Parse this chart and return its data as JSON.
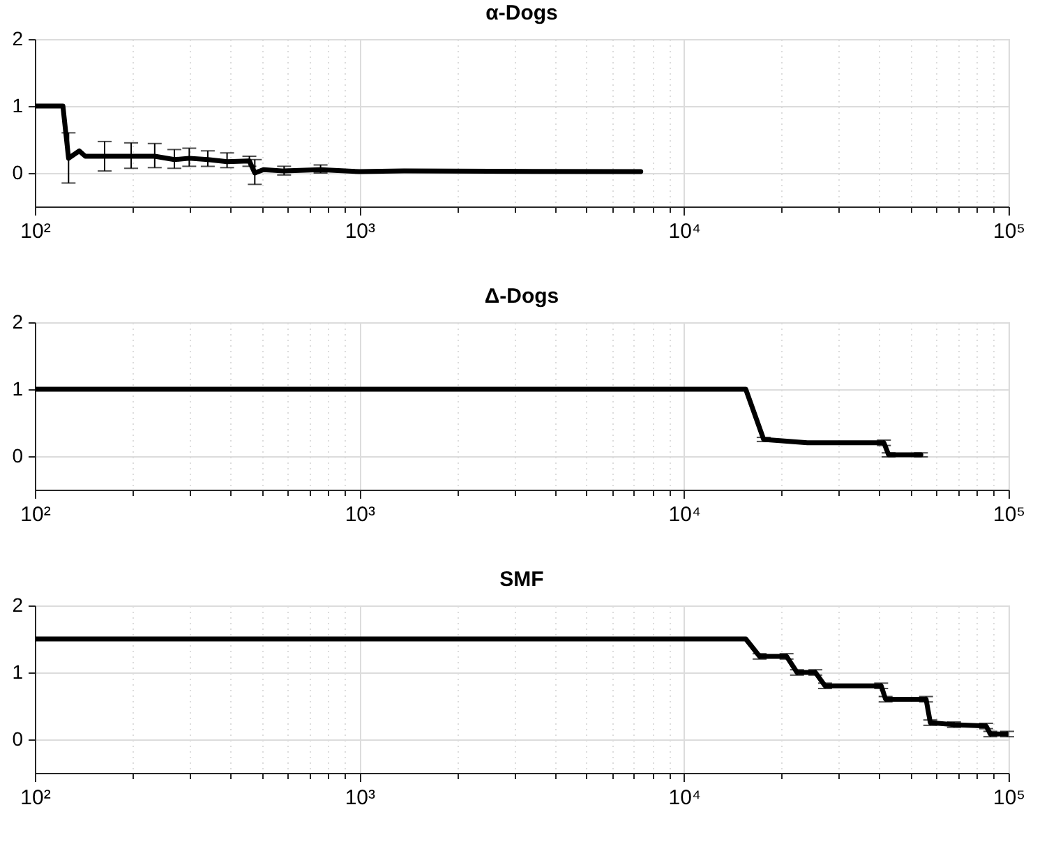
{
  "chart_data": [
    {
      "type": "line",
      "title": "α-Dogs",
      "log": "x",
      "grid": true,
      "marker": "none",
      "line_style": "solid",
      "xlim": [
        100,
        100000
      ],
      "ylim": [
        -0.5,
        2
      ],
      "yticks": [
        0,
        1,
        2
      ],
      "xticks": [
        {
          "value": 100,
          "label": "10²"
        },
        {
          "value": 200,
          "label": null
        },
        {
          "value": 300,
          "label": null
        },
        {
          "value": 400,
          "label": null
        },
        {
          "value": 500,
          "label": null
        },
        {
          "value": 600,
          "label": null
        },
        {
          "value": 700,
          "label": null
        },
        {
          "value": 800,
          "label": null
        },
        {
          "value": 900,
          "label": null
        },
        {
          "value": 1000,
          "label": "10³"
        },
        {
          "value": 2000,
          "label": null
        },
        {
          "value": 3000,
          "label": null
        },
        {
          "value": 4000,
          "label": null
        },
        {
          "value": 5000,
          "label": null
        },
        {
          "value": 6000,
          "label": null
        },
        {
          "value": 7000,
          "label": null
        },
        {
          "value": 8000,
          "label": null
        },
        {
          "value": 9000,
          "label": null
        },
        {
          "value": 10000,
          "label": "10⁴"
        },
        {
          "value": 20000,
          "label": null
        },
        {
          "value": 30000,
          "label": null
        },
        {
          "value": 40000,
          "label": null
        },
        {
          "value": 50000,
          "label": null
        },
        {
          "value": 60000,
          "label": null
        },
        {
          "value": 70000,
          "label": null
        },
        {
          "value": 80000,
          "label": null
        },
        {
          "value": 90000,
          "label": null
        },
        {
          "value": 100000,
          "label": "10⁵"
        }
      ],
      "series": [
        {
          "color": "#000000",
          "x": [
            100,
            122,
            127,
            137,
            143,
            164,
            198,
            234,
            269,
            299,
            341,
            391,
            458,
            476,
            506,
            586,
            759,
            1000,
            1372,
            7360
          ],
          "values": [
            1.0,
            1.0,
            0.22,
            0.33,
            0.25,
            0.25,
            0.25,
            0.25,
            0.2,
            0.22,
            0.2,
            0.17,
            0.18,
            0.0,
            0.05,
            0.03,
            0.05,
            0.02,
            0.03,
            0.02
          ],
          "errors": [
            null,
            null,
            [
              -0.15,
              0.6
            ],
            null,
            null,
            [
              0.03,
              0.47
            ],
            [
              0.07,
              0.45
            ],
            [
              0.08,
              0.44
            ],
            [
              0.07,
              0.35
            ],
            [
              0.1,
              0.37
            ],
            [
              0.1,
              0.33
            ],
            [
              0.08,
              0.3
            ],
            [
              0.1,
              0.25
            ],
            [
              -0.17,
              0.2
            ],
            null,
            [
              -0.03,
              0.1
            ],
            [
              0.0,
              0.12
            ],
            null,
            null,
            null
          ]
        }
      ]
    },
    {
      "type": "line",
      "title": "Δ-Dogs",
      "log": "x",
      "grid": true,
      "marker": "none",
      "line_style": "solid",
      "xlim": [
        100,
        100000
      ],
      "ylim": [
        -0.5,
        2
      ],
      "yticks": [
        0,
        1,
        2
      ],
      "xticks": [
        {
          "value": 100,
          "label": "10²"
        },
        {
          "value": 200,
          "label": null
        },
        {
          "value": 300,
          "label": null
        },
        {
          "value": 400,
          "label": null
        },
        {
          "value": 500,
          "label": null
        },
        {
          "value": 600,
          "label": null
        },
        {
          "value": 700,
          "label": null
        },
        {
          "value": 800,
          "label": null
        },
        {
          "value": 900,
          "label": null
        },
        {
          "value": 1000,
          "label": "10³"
        },
        {
          "value": 2000,
          "label": null
        },
        {
          "value": 3000,
          "label": null
        },
        {
          "value": 4000,
          "label": null
        },
        {
          "value": 5000,
          "label": null
        },
        {
          "value": 6000,
          "label": null
        },
        {
          "value": 7000,
          "label": null
        },
        {
          "value": 8000,
          "label": null
        },
        {
          "value": 9000,
          "label": null
        },
        {
          "value": 10000,
          "label": "10⁴"
        },
        {
          "value": 20000,
          "label": null
        },
        {
          "value": 30000,
          "label": null
        },
        {
          "value": 40000,
          "label": null
        },
        {
          "value": 50000,
          "label": null
        },
        {
          "value": 60000,
          "label": null
        },
        {
          "value": 70000,
          "label": null
        },
        {
          "value": 80000,
          "label": null
        },
        {
          "value": 90000,
          "label": null
        },
        {
          "value": 100000,
          "label": "10⁵"
        }
      ],
      "series": [
        {
          "color": "#000000",
          "x": [
            100,
            15500,
            17600,
            24000,
            41300,
            42700,
            53700
          ],
          "values": [
            1.0,
            1.0,
            0.25,
            0.2,
            0.2,
            0.02,
            0.02
          ],
          "errors": [
            null,
            null,
            [
              0.22,
              0.28
            ],
            null,
            [
              0.16,
              0.24
            ],
            [
              -0.01,
              0.05
            ],
            [
              -0.01,
              0.05
            ]
          ]
        }
      ]
    },
    {
      "type": "line",
      "title": "SMF",
      "log": "x",
      "grid": true,
      "marker": "none",
      "line_style": "solid",
      "xlim": [
        100,
        100000
      ],
      "ylim": [
        -0.5,
        2
      ],
      "yticks": [
        0,
        1,
        2
      ],
      "xticks": [
        {
          "value": 100,
          "label": "10²"
        },
        {
          "value": 200,
          "label": null
        },
        {
          "value": 300,
          "label": null
        },
        {
          "value": 400,
          "label": null
        },
        {
          "value": 500,
          "label": null
        },
        {
          "value": 600,
          "label": null
        },
        {
          "value": 700,
          "label": null
        },
        {
          "value": 800,
          "label": null
        },
        {
          "value": 900,
          "label": null
        },
        {
          "value": 1000,
          "label": "10³"
        },
        {
          "value": 2000,
          "label": null
        },
        {
          "value": 3000,
          "label": null
        },
        {
          "value": 4000,
          "label": null
        },
        {
          "value": 5000,
          "label": null
        },
        {
          "value": 6000,
          "label": null
        },
        {
          "value": 7000,
          "label": null
        },
        {
          "value": 8000,
          "label": null
        },
        {
          "value": 9000,
          "label": null
        },
        {
          "value": 10000,
          "label": "10⁴"
        },
        {
          "value": 20000,
          "label": null
        },
        {
          "value": 30000,
          "label": null
        },
        {
          "value": 40000,
          "label": null
        },
        {
          "value": 50000,
          "label": null
        },
        {
          "value": 60000,
          "label": null
        },
        {
          "value": 70000,
          "label": null
        },
        {
          "value": 80000,
          "label": null
        },
        {
          "value": 90000,
          "label": null
        },
        {
          "value": 100000,
          "label": "10⁵"
        }
      ],
      "series": [
        {
          "color": "#000000",
          "x": [
            100,
            15500,
            17100,
            20700,
            22300,
            25400,
            27200,
            40500,
            41800,
            55700,
            57400,
            67900,
            85300,
            87900,
            99000
          ],
          "values": [
            1.5,
            1.5,
            1.24,
            1.24,
            1.0,
            1.0,
            0.8,
            0.8,
            0.6,
            0.6,
            0.25,
            0.22,
            0.2,
            0.08,
            0.08
          ],
          "errors": [
            null,
            null,
            [
              1.2,
              1.28
            ],
            [
              1.2,
              1.28
            ],
            [
              0.96,
              1.04
            ],
            [
              0.96,
              1.04
            ],
            [
              0.76,
              0.84
            ],
            [
              0.76,
              0.84
            ],
            [
              0.56,
              0.64
            ],
            [
              0.56,
              0.64
            ],
            [
              0.21,
              0.29
            ],
            [
              0.18,
              0.26
            ],
            [
              0.16,
              0.24
            ],
            [
              0.04,
              0.12
            ],
            [
              0.04,
              0.12
            ]
          ]
        }
      ]
    }
  ]
}
